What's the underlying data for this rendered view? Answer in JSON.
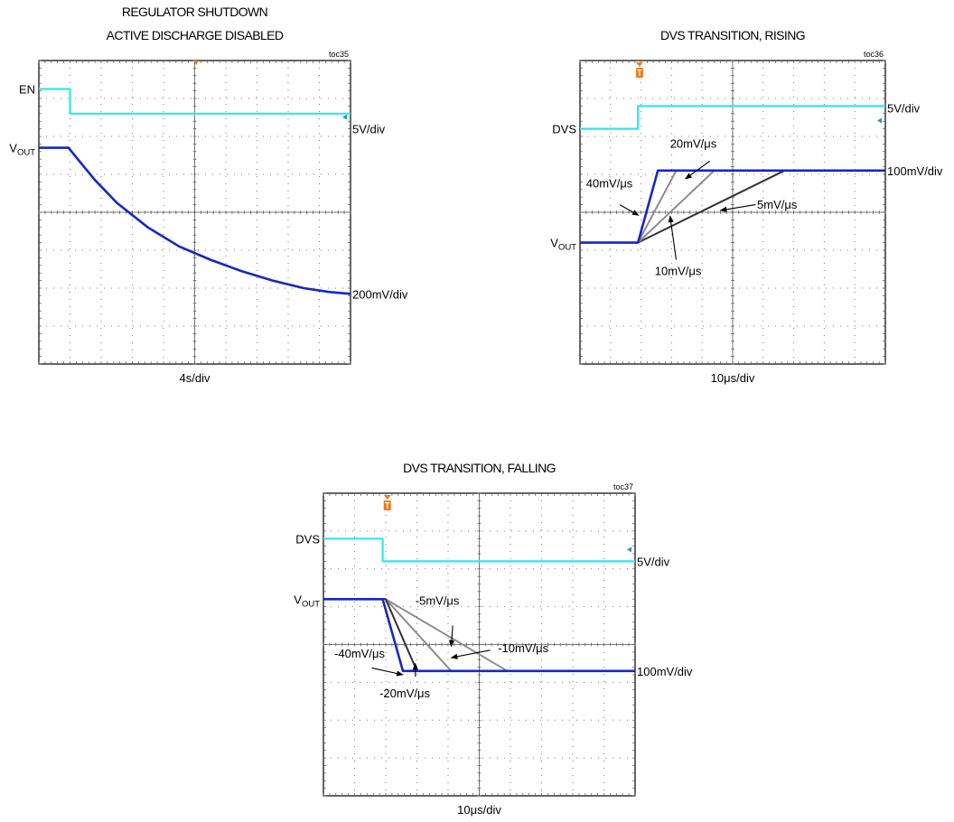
{
  "colors": {
    "cyan_trace": "#2fe6ea",
    "blue_trace": "#1526c9",
    "gray_trace": "#8c8c8c",
    "dark_trace": "#333333",
    "trigger_marker": "#f07a1a",
    "grid_dots": "#7a7a7a",
    "channel_marker": "#19a0a8"
  },
  "chart_data": [
    {
      "id": "toc35",
      "type": "line",
      "title_lines": [
        "REGULATOR SHUTDOWN",
        "ACTIVE DISCHARGE DISABLED"
      ],
      "tag": "toc35",
      "time_scale": "4s/div",
      "grid": true,
      "grid_divisions": {
        "x": 10,
        "y": 8
      },
      "x_unit": "div",
      "y_unit": "div",
      "channel_labels": [
        {
          "name": "EN",
          "sub": "",
          "y": 7.25
        },
        {
          "name": "V",
          "sub": "OUT",
          "y": 5.7
        }
      ],
      "scale_labels": [
        {
          "text": "5V/div",
          "y": 6.2
        },
        {
          "text": "200mV/div",
          "y": 1.85
        }
      ],
      "annotations": [],
      "series": [
        {
          "color_key": "cyan_trace",
          "x": [
            0,
            1.0,
            1.0,
            10
          ],
          "y": [
            7.25,
            7.25,
            6.6,
            6.6
          ]
        },
        {
          "color_key": "blue_trace",
          "x": [
            0,
            0.95,
            1.3,
            1.8,
            2.5,
            3.5,
            4.5,
            5.5,
            6.5,
            7.5,
            8.5,
            9.3,
            10
          ],
          "y": [
            5.7,
            5.7,
            5.35,
            4.85,
            4.25,
            3.6,
            3.1,
            2.75,
            2.45,
            2.2,
            2.0,
            1.9,
            1.85
          ]
        }
      ]
    },
    {
      "id": "toc36",
      "type": "line",
      "title_lines": [
        "DVS TRANSITION, RISING"
      ],
      "tag": "toc36",
      "time_scale": "10μs/div",
      "grid": true,
      "grid_divisions": {
        "x": 10,
        "y": 8
      },
      "x_unit": "div",
      "y_unit": "div",
      "channel_labels": [
        {
          "name": "DVS",
          "sub": "",
          "y": 6.2
        },
        {
          "name": "V",
          "sub": "OUT",
          "y": 3.2
        }
      ],
      "scale_labels": [
        {
          "text": "5V/div",
          "y": 6.75
        },
        {
          "text": "100mV/div",
          "y": 5.1
        }
      ],
      "annotations": [
        {
          "text": "20mV/μs",
          "x": 2.95,
          "y": 5.7
        },
        {
          "text": "40mV/μs",
          "x": 0.2,
          "y": 4.65
        },
        {
          "text": "5mV/μs",
          "x": 5.8,
          "y": 4.1
        },
        {
          "text": "10mV/μs",
          "x": 2.45,
          "y": 2.35
        }
      ],
      "arrows": [
        {
          "from": [
            4.25,
            5.35
          ],
          "to": [
            3.45,
            4.88
          ]
        },
        {
          "from": [
            1.3,
            4.2
          ],
          "to": [
            1.92,
            3.92
          ]
        },
        {
          "from": [
            5.75,
            4.2
          ],
          "to": [
            4.6,
            4.05
          ]
        },
        {
          "from": [
            3.15,
            2.75
          ],
          "to": [
            2.95,
            3.9
          ]
        }
      ],
      "series": [
        {
          "color_key": "cyan_trace",
          "x": [
            0,
            1.9,
            1.9,
            10
          ],
          "y": [
            6.2,
            6.2,
            6.8,
            6.8
          ]
        },
        {
          "color_key": "dark_trace",
          "x": [
            1.9,
            6.7,
            10
          ],
          "y": [
            3.2,
            5.1,
            5.1
          ]
        },
        {
          "color_key": "gray_trace",
          "x": [
            1.9,
            4.4,
            10
          ],
          "y": [
            3.2,
            5.1,
            5.1
          ]
        },
        {
          "color_key": "gray_trace",
          "x": [
            1.9,
            3.15,
            10
          ],
          "y": [
            3.2,
            5.1,
            5.1
          ]
        },
        {
          "color_key": "blue_trace",
          "x": [
            0,
            1.9,
            2.55,
            10
          ],
          "y": [
            3.2,
            3.2,
            5.1,
            5.1
          ]
        }
      ]
    },
    {
      "id": "toc37",
      "type": "line",
      "title_lines": [
        "DVS TRANSITION, FALLING"
      ],
      "tag": "toc37",
      "time_scale": "10μs/div",
      "grid": true,
      "grid_divisions": {
        "x": 10,
        "y": 8
      },
      "x_unit": "div",
      "y_unit": "div",
      "channel_labels": [
        {
          "name": "DVS",
          "sub": "",
          "y": 6.8
        },
        {
          "name": "V",
          "sub": "OUT",
          "y": 5.2
        }
      ],
      "scale_labels": [
        {
          "text": "5V/div",
          "y": 6.2
        },
        {
          "text": "100mV/div",
          "y": 3.3
        }
      ],
      "annotations": [
        {
          "text": "-5mV/μs",
          "x": 2.95,
          "y": 5.05
        },
        {
          "text": "-10mV/μs",
          "x": 5.6,
          "y": 3.8
        },
        {
          "text": "-40mV/μs",
          "x": 0.35,
          "y": 3.65
        },
        {
          "text": "-20mV/μs",
          "x": 1.8,
          "y": 2.6
        }
      ],
      "arrows": [
        {
          "from": [
            4.15,
            4.5
          ],
          "to": [
            4.1,
            3.95
          ]
        },
        {
          "from": [
            5.35,
            3.85
          ],
          "to": [
            4.1,
            3.65
          ]
        },
        {
          "from": [
            1.55,
            3.38
          ],
          "to": [
            2.55,
            3.2
          ]
        },
        {
          "from": [
            2.95,
            3.15
          ],
          "to": [
            2.95,
            3.5
          ]
        }
      ],
      "series": [
        {
          "color_key": "cyan_trace",
          "x": [
            0,
            1.9,
            1.9,
            10
          ],
          "y": [
            6.8,
            6.8,
            6.2,
            6.2
          ]
        },
        {
          "color_key": "gray_trace",
          "x": [
            0,
            2.0,
            5.9,
            10
          ],
          "y": [
            5.2,
            5.2,
            3.3,
            3.3
          ]
        },
        {
          "color_key": "gray_trace",
          "x": [
            0,
            2.0,
            4.1,
            10
          ],
          "y": [
            5.2,
            5.2,
            3.3,
            3.3
          ]
        },
        {
          "color_key": "dark_trace",
          "x": [
            0,
            2.0,
            3.0,
            10
          ],
          "y": [
            5.2,
            5.2,
            3.3,
            3.3
          ]
        },
        {
          "color_key": "blue_trace",
          "x": [
            0,
            1.9,
            2.55,
            10
          ],
          "y": [
            5.2,
            5.2,
            3.3,
            3.3
          ]
        }
      ]
    }
  ]
}
